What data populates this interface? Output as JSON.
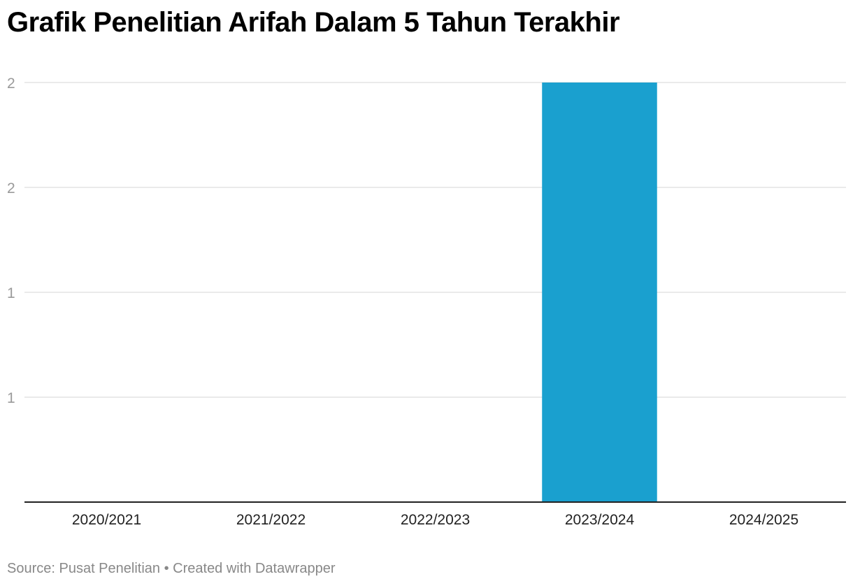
{
  "chart_data": {
    "type": "bar",
    "title": "Grafik Penelitian Arifah Dalam 5 Tahun Terakhir",
    "categories": [
      "2020/2021",
      "2021/2022",
      "2022/2023",
      "2023/2024",
      "2024/2025"
    ],
    "values": [
      0,
      0,
      0,
      2,
      0
    ],
    "y_tick_labels": [
      "1",
      "1",
      "2",
      "2"
    ],
    "y_tick_values": [
      0.5,
      1.0,
      1.5,
      2.0
    ],
    "ylim": [
      0,
      2
    ],
    "xlabel": "",
    "ylabel": "",
    "grid": true,
    "bar_color": "#1aa0cf"
  },
  "footer": {
    "source": "Source: Pusat Penelitian",
    "separator": " • ",
    "credit": "Created with Datawrapper"
  }
}
